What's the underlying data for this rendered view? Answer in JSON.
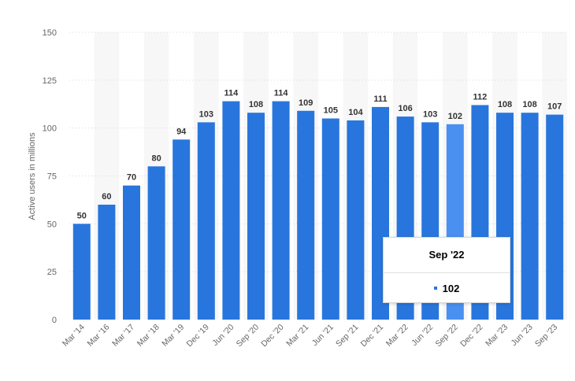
{
  "colors": {
    "bar": "#2876dd",
    "bar_highlight": "#4a90f0",
    "band": "#f7f7f7",
    "grid": "#d7d7d7",
    "tick_text": "#666666",
    "label_text": "#333333"
  },
  "tooltip": {
    "title": "Sep '22",
    "value": "102",
    "marker_icon": "square-marker-icon"
  },
  "chart_data": {
    "type": "bar",
    "title": "",
    "xlabel": "",
    "ylabel": "Active users in millions",
    "ylim": [
      0,
      150
    ],
    "yticks": [
      0,
      25,
      50,
      75,
      100,
      125,
      150
    ],
    "grid": true,
    "legend": "none",
    "highlighted_category": "Sep '22",
    "categories": [
      "Mar '14",
      "Mar '16",
      "Mar '17",
      "Mar '18",
      "Mar '19",
      "Dec '19",
      "Jun '20",
      "Sep '20",
      "Dec '20",
      "Mar '21",
      "Jun '21",
      "Sep '21",
      "Dec '21",
      "Mar '22",
      "Jun '22",
      "Sep '22",
      "Dec '22",
      "Mar '23",
      "Jun '23",
      "Sep '23"
    ],
    "values": [
      50,
      60,
      70,
      80,
      94,
      103,
      114,
      108,
      114,
      109,
      105,
      104,
      111,
      106,
      103,
      102,
      112,
      108,
      108,
      107
    ]
  }
}
